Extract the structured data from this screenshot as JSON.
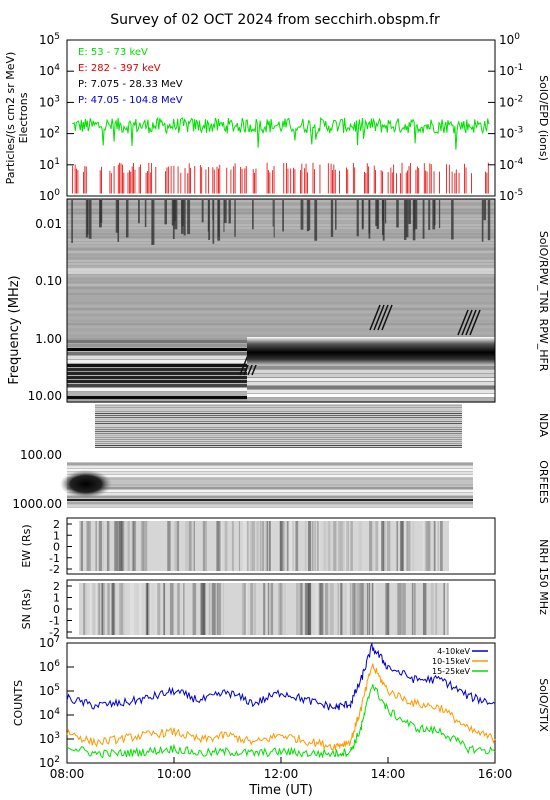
{
  "title": "Survey of 02 OCT 2024 from secchirh.obspm.fr",
  "colors": {
    "electrons_low": "#00e000",
    "electrons_high": "#e00000",
    "protons_low": "#000000",
    "protons_high": "#0000cc",
    "stix_low": "#0000cc",
    "stix_mid": "#ff9900",
    "stix_high": "#00e000"
  },
  "chart_data": [
    {
      "type": "line",
      "panel": "SolO/EPD",
      "ylabel": "Particles/(s cm2 sr MeV)",
      "ylabel2": "Electrons",
      "right_label": "SolO/EPD (ions)",
      "yscale": "log",
      "ylim": [
        1,
        100000
      ],
      "y_ticks": [
        "10^0",
        "10^1",
        "10^2",
        "10^3",
        "10^4",
        "10^5"
      ],
      "y2scale": "log",
      "y2lim": [
        1e-05,
        1
      ],
      "y2_ticks": [
        "10^-5",
        "10^-4",
        "10^-3",
        "10^-2",
        "10^-1",
        "10^0"
      ],
      "legend_position": "top-left",
      "series": [
        {
          "name": "E: 53 - 73 keV",
          "baseline": 180,
          "range": [
            30,
            400
          ]
        },
        {
          "name": "E: 282 - 397 keV",
          "baseline": 8,
          "range": [
            1,
            12
          ]
        },
        {
          "name": "P: 7.075 - 28.33 MeV"
        },
        {
          "name": "P: 47.05 - 104.8 MeV"
        }
      ]
    },
    {
      "type": "heatmap",
      "panel": "SolO/RPW_TNR + RPW_HFR",
      "ylabel": "Frequency (MHz)",
      "right_labels": [
        "SolO/RPW_TNR",
        "RPW_HFR"
      ],
      "yscale": "log",
      "y_ticks": [
        "0.01",
        "0.10",
        "1.00",
        "10.00"
      ],
      "notes": "HFR band becomes saturated (dark) from ~11:25 UT onward"
    },
    {
      "type": "heatmap",
      "panel": "NDA",
      "right_label": "NDA",
      "y_ticks": [
        "100.00"
      ],
      "time_coverage": [
        "08:45",
        "15:45"
      ]
    },
    {
      "type": "heatmap",
      "panel": "ORFEES",
      "right_label": "ORFEES",
      "y_ticks": [
        "1000.00"
      ],
      "time_coverage": [
        "08:15",
        "15:50"
      ]
    },
    {
      "type": "heatmap",
      "panel": "NRH 150 MHz EW",
      "ylabel": "EW (Rs)",
      "right_label": "NRH 150 MHz",
      "y_ticks": [
        "2",
        "1",
        "0",
        "-1",
        "-2"
      ],
      "ylim": [
        -2,
        2
      ],
      "time_coverage": [
        "08:25",
        "15:10"
      ]
    },
    {
      "type": "heatmap",
      "panel": "NRH 150 MHz SN",
      "ylabel": "SN (Rs)",
      "y_ticks": [
        "2",
        "1",
        "0",
        "-1",
        "-2"
      ],
      "ylim": [
        -2,
        2
      ],
      "time_coverage": [
        "08:25",
        "15:10"
      ]
    },
    {
      "type": "line",
      "panel": "SolO/STIX",
      "ylabel": "COUNTS",
      "right_label": "SolO/STIX",
      "yscale": "log",
      "ylim": [
        100,
        10000000
      ],
      "y_ticks": [
        "10^2",
        "10^3",
        "10^4",
        "10^5",
        "10^6",
        "10^7"
      ],
      "xlabel": "Time (UT)",
      "x_ticks": [
        "08:00",
        "10:00",
        "12:00",
        "14:00",
        "16:00"
      ],
      "xlim": [
        "08:00",
        "16:00"
      ],
      "legend_position": "top-right",
      "series": [
        {
          "name": "4-10keV",
          "x": [
            8.0,
            8.5,
            9.0,
            9.5,
            10.0,
            10.5,
            11.0,
            11.5,
            12.0,
            12.5,
            13.0,
            13.3,
            13.5,
            13.7,
            14.0,
            14.5,
            15.0,
            15.5,
            16.0
          ],
          "y": [
            50000,
            25000,
            30000,
            50000,
            100000,
            40000,
            90000,
            30000,
            90000,
            40000,
            20000,
            30000,
            300000,
            7000000,
            1000000,
            300000,
            300000,
            60000,
            30000
          ]
        },
        {
          "name": "10-15keV",
          "x": [
            8.0,
            8.5,
            9.0,
            9.5,
            10.0,
            10.5,
            11.0,
            11.5,
            12.0,
            12.5,
            13.0,
            13.3,
            13.5,
            13.7,
            14.0,
            14.5,
            15.0,
            15.5,
            16.0
          ],
          "y": [
            2000,
            700,
            1000,
            1500,
            2000,
            900,
            1500,
            700,
            1500,
            800,
            500,
            800,
            20000,
            1200000,
            100000,
            30000,
            20000,
            2500,
            1000
          ]
        },
        {
          "name": "15-25keV",
          "x": [
            8.0,
            8.5,
            9.0,
            9.5,
            10.0,
            10.5,
            11.0,
            11.5,
            12.0,
            12.5,
            13.0,
            13.3,
            13.5,
            13.7,
            14.0,
            14.5,
            15.0,
            15.5,
            16.0
          ],
          "y": [
            500,
            250,
            250,
            300,
            400,
            250,
            300,
            250,
            300,
            250,
            250,
            300,
            3000,
            200000,
            15000,
            3000,
            2000,
            400,
            300
          ]
        }
      ]
    }
  ]
}
